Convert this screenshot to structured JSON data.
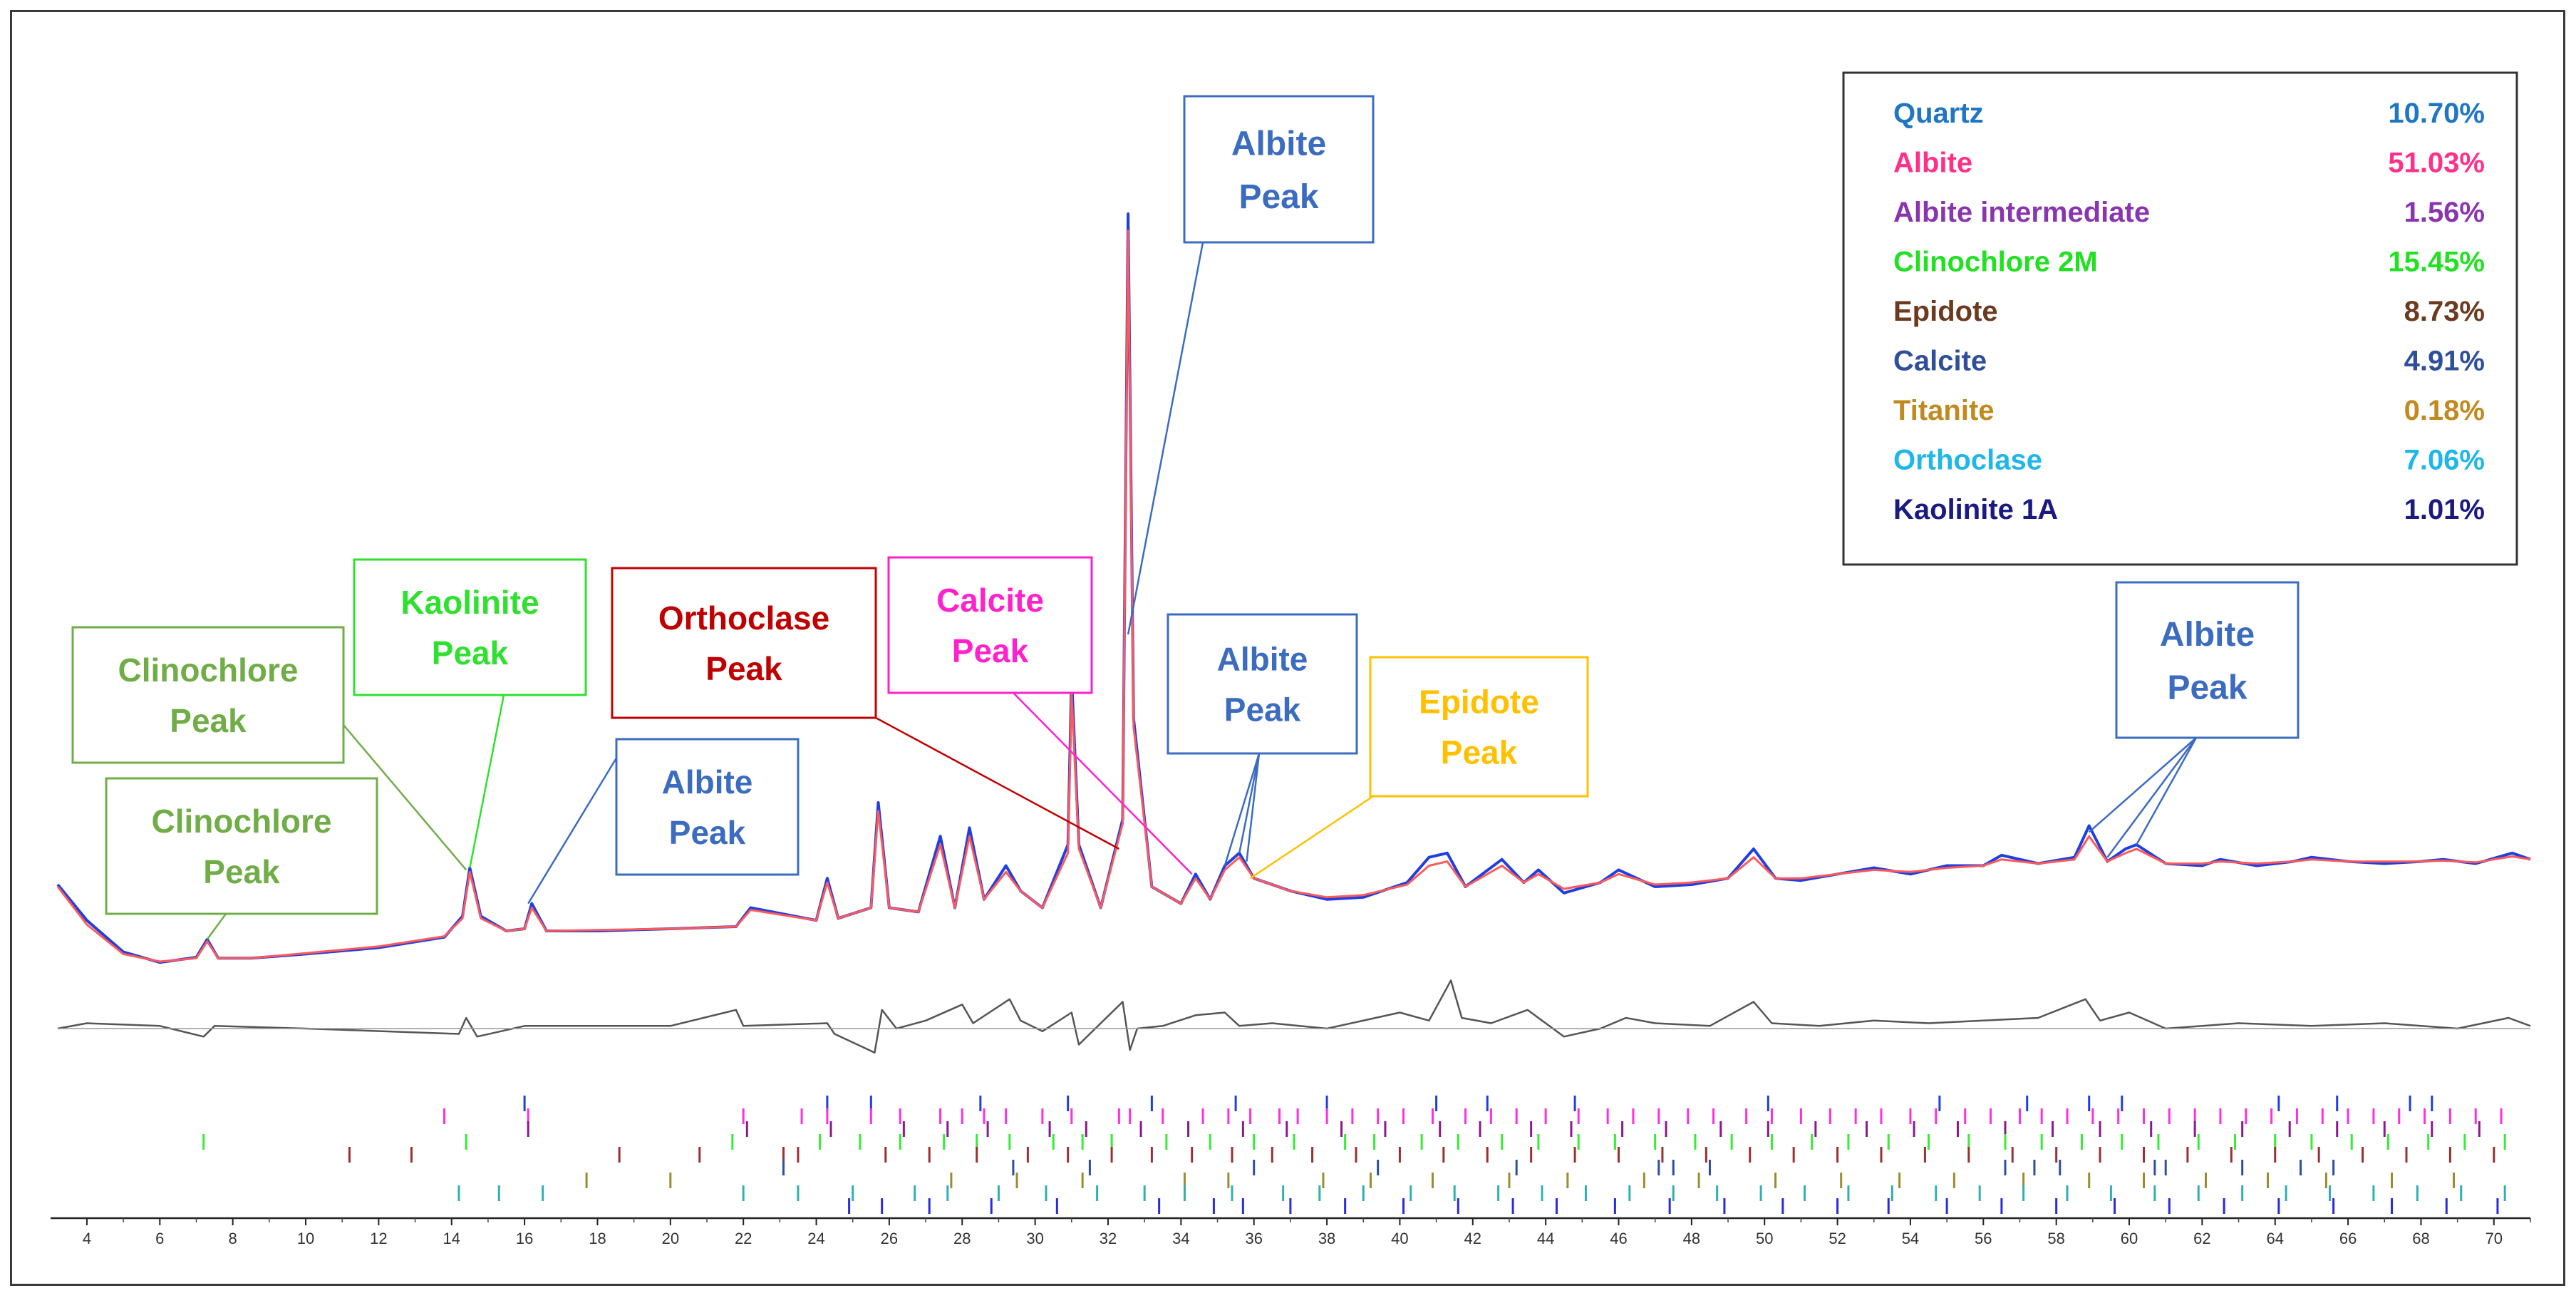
{
  "chart_data": {
    "type": "line",
    "title": "",
    "xlabel": "",
    "ylabel": "",
    "xlim": [
      3.2,
      71
    ],
    "x_ticks": [
      4,
      6,
      8,
      10,
      12,
      14,
      16,
      18,
      20,
      22,
      24,
      26,
      28,
      30,
      32,
      34,
      36,
      38,
      40,
      42,
      44,
      46,
      48,
      50,
      52,
      54,
      56,
      58,
      60,
      62,
      64,
      66,
      68,
      70
    ],
    "series": [
      {
        "color": "#1f3fe0",
        "role": "observed",
        "x": [
          3.2,
          4.0,
          5.0,
          6.0,
          7.0,
          7.3,
          7.6,
          8.5,
          10,
          12,
          13.8,
          14.3,
          14.5,
          14.8,
          15.5,
          16.0,
          16.2,
          16.6,
          18,
          20,
          21.8,
          22.2,
          24.0,
          24.3,
          24.6,
          25.5,
          25.7,
          26.0,
          26.8,
          27.4,
          27.8,
          28.2,
          28.6,
          29.2,
          29.6,
          30.2,
          30.9,
          31.0,
          31.2,
          31.8,
          32.4,
          32.55,
          32.7,
          33.2,
          34.0,
          34.4,
          34.8,
          35.2,
          35.6,
          36.0,
          37.0,
          38.0,
          39.0,
          40.2,
          40.8,
          41.3,
          41.8,
          42.8,
          43.4,
          43.8,
          44.5,
          45.5,
          46.0,
          47.0,
          48.0,
          49.0,
          49.7,
          50.3,
          51.0,
          52.0,
          53.0,
          54.0,
          55.0,
          56.0,
          56.5,
          57.5,
          58.5,
          58.9,
          59.4,
          59.9,
          60.2,
          61.0,
          62.0,
          62.5,
          63.5,
          64.5,
          65.0,
          66.0,
          67.0,
          68.0,
          68.6,
          69.5,
          70.5,
          71.0
        ],
        "y": [
          2.05,
          1.2,
          0.45,
          0.2,
          0.32,
          0.75,
          0.3,
          0.3,
          0.4,
          0.55,
          0.8,
          1.3,
          2.45,
          1.3,
          0.95,
          1.0,
          1.6,
          0.95,
          0.95,
          1.0,
          1.05,
          1.5,
          1.2,
          2.2,
          1.25,
          1.5,
          4.0,
          1.5,
          1.4,
          3.2,
          1.5,
          3.4,
          1.7,
          2.5,
          1.9,
          1.5,
          3.0,
          7.0,
          3.0,
          1.5,
          3.6,
          18.0,
          6.0,
          2.0,
          1.6,
          2.3,
          1.7,
          2.5,
          2.8,
          2.2,
          1.9,
          1.7,
          1.75,
          2.1,
          2.7,
          2.8,
          2.0,
          2.65,
          2.1,
          2.4,
          1.85,
          2.1,
          2.4,
          2.0,
          2.05,
          2.2,
          2.9,
          2.2,
          2.15,
          2.3,
          2.45,
          2.3,
          2.5,
          2.5,
          2.75,
          2.55,
          2.7,
          3.45,
          2.6,
          2.9,
          3.0,
          2.55,
          2.5,
          2.65,
          2.5,
          2.6,
          2.7,
          2.6,
          2.55,
          2.6,
          2.65,
          2.55,
          2.8,
          2.65
        ]
      },
      {
        "color": "#ff5a5a",
        "role": "calculated",
        "x": [
          3.2,
          4.0,
          5.0,
          6.0,
          7.0,
          7.3,
          7.6,
          8.5,
          10,
          12,
          13.8,
          14.3,
          14.5,
          14.8,
          15.5,
          16.0,
          16.2,
          16.6,
          18,
          20,
          21.8,
          22.2,
          24.0,
          24.3,
          24.6,
          25.5,
          25.7,
          26.0,
          26.8,
          27.4,
          27.8,
          28.2,
          28.6,
          29.2,
          29.6,
          30.2,
          30.9,
          31.0,
          31.2,
          31.8,
          32.4,
          32.55,
          32.7,
          33.2,
          34.0,
          34.4,
          34.8,
          35.2,
          35.6,
          36.0,
          37.0,
          38.0,
          39.0,
          40.2,
          40.8,
          41.3,
          41.8,
          42.8,
          43.4,
          43.8,
          44.5,
          45.5,
          46.0,
          47.0,
          48.0,
          49.0,
          49.7,
          50.3,
          51.0,
          52.0,
          53.0,
          54.0,
          55.0,
          56.0,
          56.5,
          57.5,
          58.5,
          58.9,
          59.4,
          59.9,
          60.2,
          61.0,
          62.0,
          62.5,
          63.5,
          64.5,
          65.0,
          66.0,
          67.0,
          68.0,
          68.6,
          69.5,
          70.5,
          71.0
        ],
        "y": [
          2.0,
          1.1,
          0.4,
          0.22,
          0.3,
          0.7,
          0.3,
          0.3,
          0.42,
          0.58,
          0.82,
          1.25,
          2.35,
          1.25,
          0.95,
          1.0,
          1.5,
          0.95,
          0.97,
          1.0,
          1.05,
          1.45,
          1.2,
          2.1,
          1.25,
          1.5,
          3.8,
          1.5,
          1.4,
          3.0,
          1.5,
          3.2,
          1.7,
          2.35,
          1.9,
          1.5,
          2.8,
          6.6,
          2.9,
          1.5,
          3.5,
          17.6,
          5.8,
          2.0,
          1.6,
          2.2,
          1.7,
          2.4,
          2.7,
          2.2,
          1.9,
          1.75,
          1.8,
          2.05,
          2.5,
          2.6,
          2.0,
          2.5,
          2.1,
          2.3,
          1.95,
          2.1,
          2.3,
          2.05,
          2.1,
          2.2,
          2.7,
          2.2,
          2.2,
          2.3,
          2.4,
          2.35,
          2.45,
          2.5,
          2.65,
          2.55,
          2.65,
          3.2,
          2.6,
          2.8,
          2.9,
          2.55,
          2.55,
          2.6,
          2.55,
          2.6,
          2.65,
          2.6,
          2.6,
          2.6,
          2.62,
          2.58,
          2.72,
          2.65
        ]
      },
      {
        "color": "#555555",
        "role": "difference",
        "x": [
          3.2,
          4,
          6,
          7.2,
          7.5,
          10,
          14.2,
          14.4,
          14.7,
          16,
          20,
          21.8,
          22,
          24.3,
          24.5,
          25.6,
          25.8,
          26.2,
          27,
          28.0,
          28.3,
          29.3,
          29.6,
          30.2,
          31.0,
          31.2,
          32.4,
          32.6,
          32.8,
          33.5,
          34.4,
          35.2,
          35.6,
          36.5,
          38,
          40,
          40.8,
          41.4,
          41.7,
          42.5,
          43.5,
          44.5,
          45.5,
          46.2,
          47,
          48.5,
          49.7,
          50.2,
          51.5,
          53,
          54.5,
          56,
          57.5,
          58.8,
          59.2,
          60,
          61,
          63,
          65,
          67,
          69,
          70.4,
          71
        ],
        "y": [
          0.0,
          0.1,
          0.05,
          -0.15,
          0.05,
          0.0,
          -0.1,
          0.2,
          -0.15,
          0.05,
          0.05,
          0.35,
          0.05,
          0.1,
          -0.1,
          -0.45,
          0.35,
          0.0,
          0.15,
          0.45,
          0.1,
          0.55,
          0.15,
          -0.05,
          0.3,
          -0.3,
          0.5,
          -0.4,
          0.0,
          0.05,
          0.25,
          0.3,
          0.05,
          0.1,
          0.0,
          0.3,
          0.15,
          0.9,
          0.2,
          0.1,
          0.35,
          -0.15,
          0.0,
          0.2,
          0.1,
          0.05,
          0.5,
          0.1,
          0.05,
          0.15,
          0.1,
          0.15,
          0.2,
          0.55,
          0.15,
          0.3,
          0.0,
          0.1,
          0.05,
          0.1,
          0.0,
          0.2,
          0.05
        ]
      }
    ],
    "legend": {
      "placement": "top-right",
      "entries": [
        {
          "name": "Quartz",
          "value": "10.70%",
          "color": "#1f77c4"
        },
        {
          "name": "Albite",
          "value": "51.03%",
          "color": "#ff2f8a"
        },
        {
          "name": "Albite intermediate",
          "value": "1.56%",
          "color": "#8a35b0"
        },
        {
          "name": "Clinochlore 2M",
          "value": "15.45%",
          "color": "#22e022"
        },
        {
          "name": "Epidote",
          "value": "8.73%",
          "color": "#6b3a1f"
        },
        {
          "name": "Calcite",
          "value": "4.91%",
          "color": "#2f4f9a"
        },
        {
          "name": "Titanite",
          "value": "0.18%",
          "color": "#c08a20"
        },
        {
          "name": "Orthoclase",
          "value": "7.06%",
          "color": "#1fb7ea"
        },
        {
          "name": "Kaolinite 1A",
          "value": "1.01%",
          "color": "#1a1a80"
        }
      ]
    },
    "annotations": [
      {
        "label": [
          "Albite",
          "Peak"
        ],
        "color": "#3c6cc0",
        "text_color": "#3c6cc0",
        "targets": [
          [
            32.55,
            8.0
          ]
        ]
      },
      {
        "label": [
          "Kaolinite",
          "Peak"
        ],
        "color": "#2fe02f",
        "text_color": "#2fe02f",
        "targets": [
          [
            14.5,
            2.45
          ]
        ]
      },
      {
        "label": [
          "Clinochlore",
          "Peak"
        ],
        "color": "#70ad47",
        "text_color": "#70ad47",
        "targets": [
          [
            14.4,
            2.4
          ]
        ]
      },
      {
        "label": [
          "Clinochlore",
          "Peak"
        ],
        "color": "#70ad47",
        "text_color": "#70ad47",
        "targets": [
          [
            7.3,
            0.75
          ]
        ]
      },
      {
        "label": [
          "Albite",
          "Peak"
        ],
        "color": "#3c6cc0",
        "text_color": "#3c6cc0",
        "targets": [
          [
            16.1,
            1.6
          ]
        ]
      },
      {
        "label": [
          "Orthoclase",
          "Peak"
        ],
        "color": "#c00000",
        "text_color": "#c00000",
        "targets": [
          [
            32.3,
            2.9
          ]
        ]
      },
      {
        "label": [
          "Calcite",
          "Peak"
        ],
        "color": "#ff22cc",
        "text_color": "#ff22cc",
        "targets": [
          [
            34.3,
            2.3
          ]
        ]
      },
      {
        "label": [
          "Albite",
          "Peak"
        ],
        "color": "#3c6cc0",
        "text_color": "#3c6cc0",
        "targets": [
          [
            35.2,
            2.5
          ],
          [
            35.6,
            2.8
          ],
          [
            35.8,
            2.6
          ]
        ]
      },
      {
        "label": [
          "Epidote",
          "Peak"
        ],
        "color": "#ffc000",
        "text_color": "#ffc000",
        "targets": [
          [
            35.9,
            2.2
          ]
        ]
      },
      {
        "label": [
          "Albite",
          "Peak"
        ],
        "color": "#3c6cc0",
        "text_color": "#3c6cc0",
        "targets": [
          [
            58.9,
            3.3
          ],
          [
            59.4,
            2.7
          ],
          [
            60.2,
            3.0
          ]
        ]
      }
    ],
    "phase_reflections": [
      {
        "color": "#1f3fe0",
        "positions": [
          16.0,
          24.3,
          25.5,
          28.5,
          30.9,
          33.2,
          35.5,
          38.0,
          41.0,
          42.4,
          44.8,
          50.1,
          54.8,
          57.2,
          58.9,
          59.8,
          64.1,
          65.7,
          67.7,
          68.3
        ]
      },
      {
        "color": "#ff2fe0",
        "positions": [
          13.8,
          16.1,
          22.0,
          23.6,
          24.3,
          25.5,
          26.3,
          27.4,
          28.0,
          28.6,
          29.2,
          30.2,
          31.0,
          32.3,
          32.6,
          33.5,
          34.6,
          35.3,
          35.9,
          36.7,
          37.2,
          38.0,
          38.7,
          39.4,
          40.1,
          40.9,
          41.8,
          42.5,
          43.2,
          44.0,
          44.9,
          45.7,
          46.4,
          47.1,
          47.9,
          48.6,
          49.5,
          50.2,
          51.0,
          51.8,
          52.5,
          53.2,
          54.0,
          54.7,
          55.5,
          56.2,
          57.0,
          57.6,
          58.3,
          59.0,
          59.7,
          60.4,
          61.1,
          61.8,
          62.5,
          63.2,
          63.9,
          64.6,
          65.3,
          66.0,
          66.7,
          67.4,
          68.1,
          68.8,
          69.5,
          70.2
        ]
      },
      {
        "color": "#8a1a8a",
        "positions": [
          16.1,
          22.1,
          24.4,
          26.4,
          27.6,
          28.7,
          30.4,
          31.4,
          32.9,
          34.2,
          35.7,
          36.9,
          38.4,
          39.6,
          41.1,
          42.2,
          43.6,
          44.7,
          46.1,
          47.3,
          48.8,
          50.1,
          51.4,
          52.8,
          54.1,
          55.3,
          56.6,
          57.9,
          59.2,
          60.6,
          61.8,
          63.1,
          64.4,
          65.7,
          67.0,
          68.3,
          69.6
        ]
      },
      {
        "color": "#33ee33",
        "positions": [
          7.2,
          14.4,
          21.7,
          24.1,
          25.2,
          26.3,
          27.5,
          28.4,
          29.3,
          30.5,
          31.3,
          32.1,
          33.6,
          34.8,
          36.0,
          37.1,
          38.5,
          39.3,
          40.6,
          41.6,
          42.8,
          43.8,
          44.9,
          45.9,
          47.0,
          48.1,
          49.1,
          50.2,
          51.3,
          52.3,
          53.4,
          54.5,
          55.6,
          56.6,
          57.6,
          58.7,
          59.8,
          60.8,
          61.9,
          62.9,
          64.0,
          65.0,
          66.1,
          67.1,
          68.2,
          69.2,
          70.3
        ]
      },
      {
        "color": "#9a3030",
        "positions": [
          11.2,
          12.9,
          18.6,
          20.8,
          23.1,
          23.5,
          25.9,
          27.1,
          28.4,
          29.8,
          30.9,
          32.1,
          33.2,
          34.3,
          35.4,
          36.5,
          37.6,
          38.8,
          40.0,
          41.2,
          42.4,
          43.6,
          44.8,
          46.0,
          47.2,
          48.4,
          49.6,
          50.8,
          52.0,
          53.2,
          54.4,
          55.6,
          56.8,
          58.0,
          59.2,
          60.4,
          61.6,
          62.8,
          64.0,
          65.2,
          66.4,
          67.6,
          68.8,
          70.0
        ]
      },
      {
        "color": "#2f4f9a",
        "positions": [
          23.1,
          29.4,
          31.5,
          36.0,
          39.4,
          43.2,
          47.1,
          47.5,
          48.5,
          56.6,
          57.4,
          58.1,
          60.7,
          61.0,
          63.1,
          64.7,
          65.6
        ]
      },
      {
        "color": "#a08a30",
        "positions": [
          17.7,
          20.0,
          27.7,
          29.5,
          31.3,
          34.1,
          35.3,
          37.9,
          39.2,
          40.9,
          43.0,
          44.6,
          46.7,
          48.2,
          50.3,
          52.1,
          53.7,
          55.2,
          57.1,
          58.9,
          60.4,
          62.1,
          63.8,
          65.4,
          67.2,
          68.9
        ]
      },
      {
        "color": "#2fb0b0",
        "positions": [
          14.2,
          15.3,
          16.5,
          22.0,
          23.5,
          25.0,
          26.7,
          27.6,
          29.0,
          30.3,
          31.7,
          33.0,
          34.1,
          35.4,
          36.8,
          37.8,
          39.0,
          40.3,
          41.5,
          42.7,
          43.9,
          45.1,
          46.3,
          47.5,
          48.7,
          49.9,
          51.1,
          52.3,
          53.5,
          54.7,
          55.9,
          57.1,
          58.3,
          59.5,
          60.7,
          61.9,
          63.1,
          64.3,
          65.5,
          66.7,
          67.9,
          69.1,
          70.3
        ]
      },
      {
        "color": "#2a2ae0",
        "positions": [
          24.9,
          25.8,
          27.1,
          28.8,
          30.6,
          33.4,
          34.9,
          35.7,
          37.0,
          38.5,
          40.1,
          41.6,
          43.1,
          44.3,
          45.9,
          47.4,
          48.9,
          50.5,
          52.0,
          53.4,
          55.0,
          56.5,
          58.0,
          59.6,
          61.1,
          62.6,
          64.1,
          65.6,
          67.2,
          68.7,
          70.1
        ]
      }
    ]
  }
}
